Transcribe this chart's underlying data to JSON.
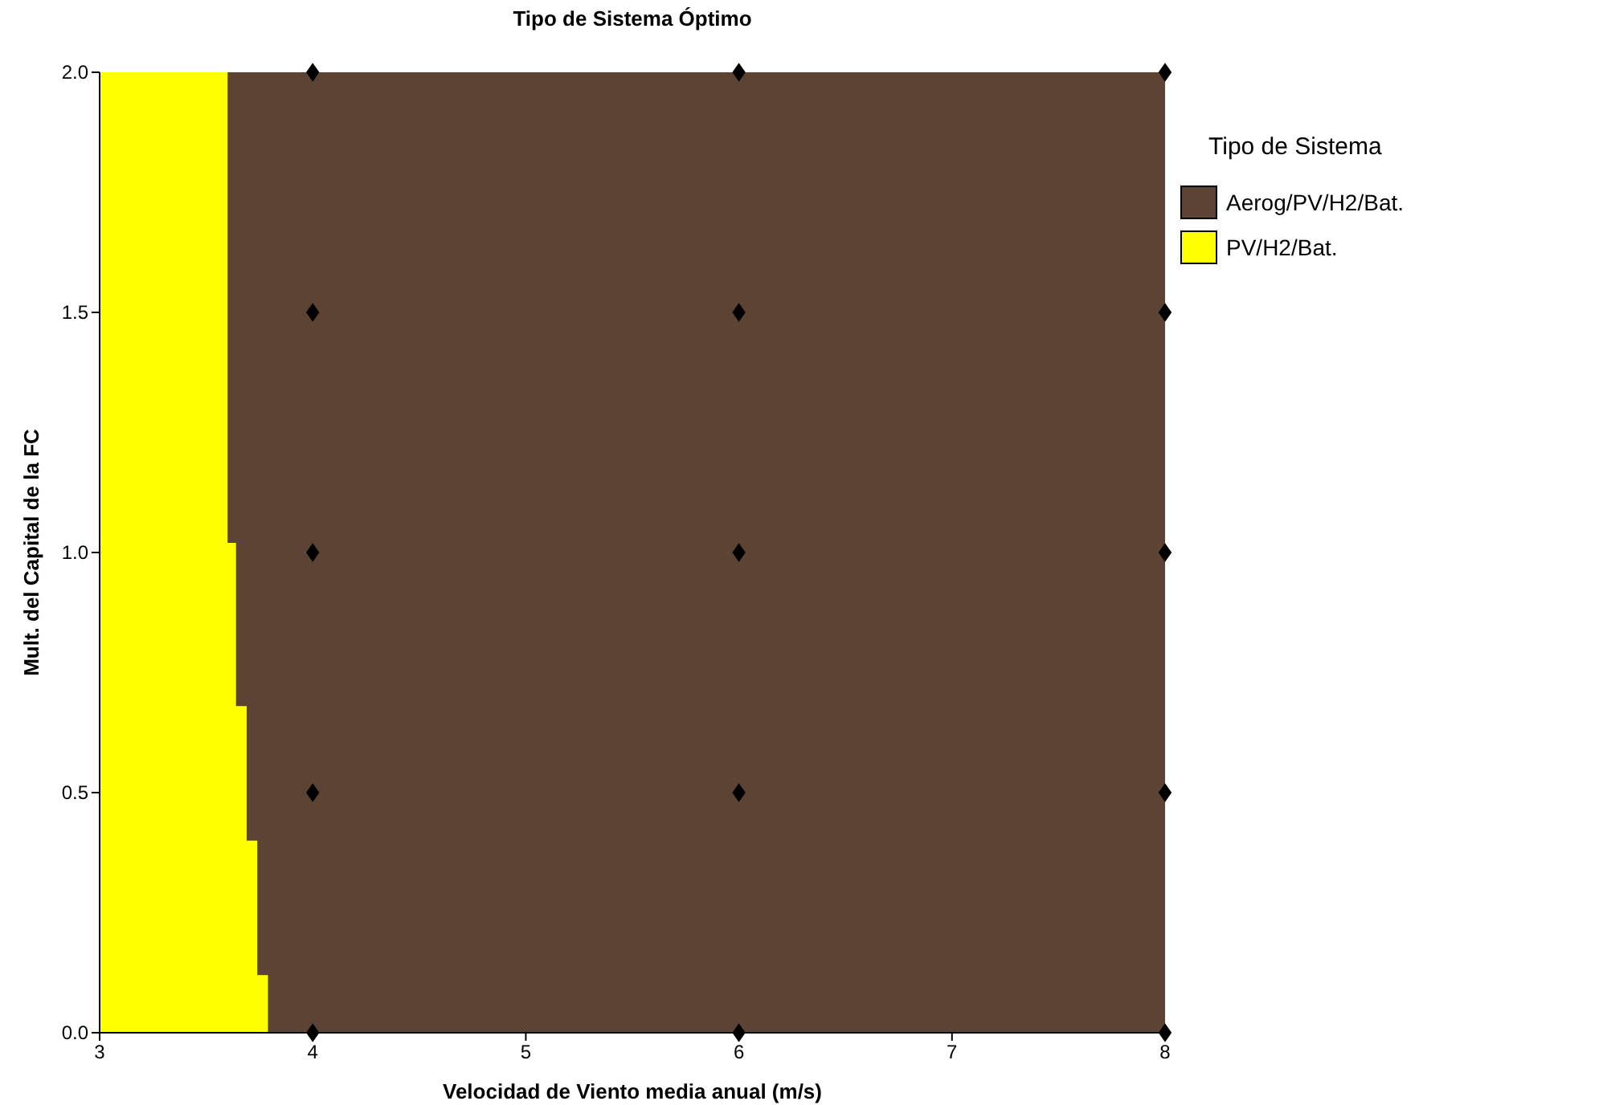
{
  "chart_data": {
    "type": "area",
    "title": "Tipo de Sistema Óptimo",
    "xlabel": "Velocidad de Viento media anual (m/s)",
    "ylabel": "Mult. del Capital de la FC",
    "legend_title": "Tipo de Sistema",
    "legend": "right",
    "x": [
      3,
      3.6,
      3.6,
      3.64,
      3.64,
      3.69,
      3.69,
      3.74,
      3.74,
      3.79,
      3.79
    ],
    "series": [
      {
        "name": "Aerog/PV/H2/Bat.",
        "color": "#5c4333",
        "x": [
          3.6,
          8
        ],
        "values": [
          2,
          2
        ]
      },
      {
        "name": "PV/H2/Bat.",
        "color": "#ffff00",
        "values": [
          2,
          2,
          1.02,
          1.02,
          0.68,
          0.68,
          0.4,
          0.4,
          0.12,
          0.12,
          0
        ]
      },
      {
        "type": "scatter",
        "color": "#000000",
        "marker": "diamond",
        "x": [
          4,
          4,
          4,
          4,
          4,
          6,
          6,
          6,
          6,
          6,
          8,
          8,
          8,
          8,
          8
        ],
        "values": [
          0,
          0.5,
          1,
          1.5,
          2,
          0,
          0.5,
          1,
          1.5,
          2,
          0,
          0.5,
          1,
          1.5,
          2
        ]
      }
    ],
    "xlim": [
      3,
      8
    ],
    "ylim": [
      0,
      2
    ],
    "xticks": [
      3,
      4,
      5,
      6,
      7,
      8
    ],
    "yticks": [
      {
        "value": 0,
        "label": "0.0"
      },
      {
        "value": 0.5,
        "label": "0.5"
      },
      {
        "value": 1,
        "label": "1.0"
      },
      {
        "value": 1.5,
        "label": "1.5"
      },
      {
        "value": 2,
        "label": "2.0"
      }
    ]
  }
}
